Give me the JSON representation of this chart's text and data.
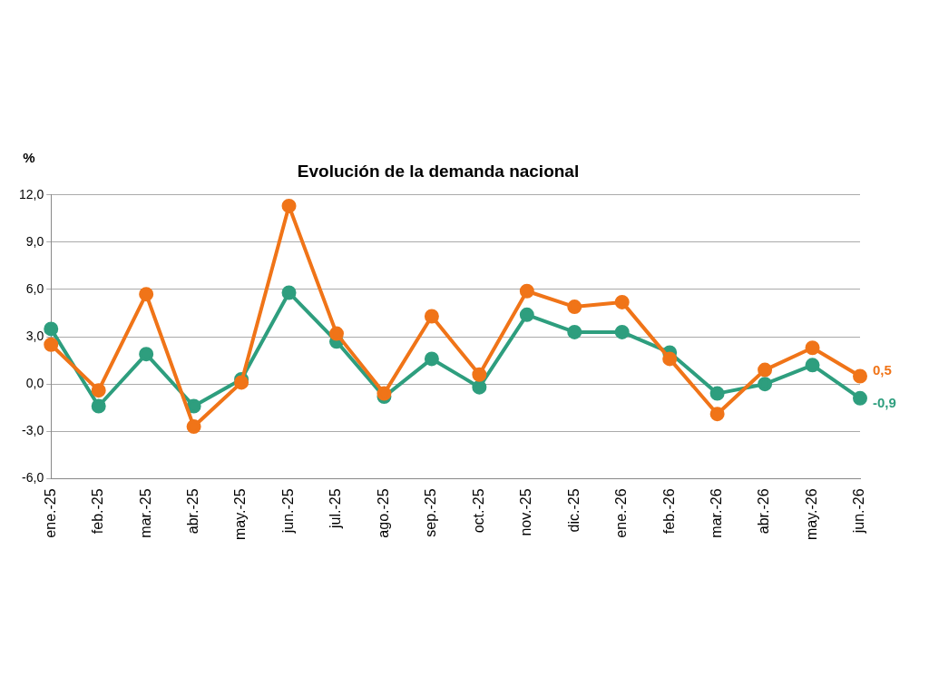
{
  "chart_data": {
    "type": "line",
    "title": "Evolución de la demanda nacional",
    "ylabel": "%",
    "categories": [
      "ene.-25",
      "feb.-25",
      "mar.-25",
      "abr.-25",
      "may.-25",
      "jun.-25",
      "jul.-25",
      "ago.-25",
      "sep.-25",
      "oct.-25",
      "nov.-25",
      "dic.-25",
      "ene.-26",
      "feb.-26",
      "mar.-26",
      "abr.-26",
      "may.-26",
      "jun.-26"
    ],
    "series": [
      {
        "color": "#2e9e7e",
        "values": [
          3.5,
          -1.4,
          1.9,
          -1.4,
          0.3,
          5.8,
          2.7,
          -0.8,
          1.6,
          -0.2,
          4.4,
          3.3,
          3.3,
          2.0,
          -0.6,
          0.0,
          1.2,
          -0.9
        ],
        "value_labels": [
          null,
          null,
          null,
          null,
          null,
          null,
          null,
          null,
          null,
          null,
          null,
          null,
          null,
          null,
          null,
          null,
          null,
          "-0,9"
        ]
      },
      {
        "color": "#f07418",
        "values": [
          2.5,
          -0.4,
          5.7,
          -2.7,
          0.1,
          11.3,
          3.2,
          -0.6,
          4.3,
          0.6,
          5.9,
          4.9,
          5.2,
          1.6,
          -1.9,
          0.9,
          2.3,
          0.5
        ],
        "value_labels": [
          null,
          null,
          null,
          null,
          null,
          null,
          null,
          null,
          null,
          null,
          null,
          null,
          null,
          null,
          null,
          null,
          null,
          "0,5"
        ]
      }
    ],
    "ylim": [
      -6,
      12
    ],
    "yticks": [
      {
        "value": -6,
        "label": "-6,0"
      },
      {
        "value": -3,
        "label": "-3,0"
      },
      {
        "value": 0,
        "label": "0,0"
      },
      {
        "value": 3,
        "label": "3,0"
      },
      {
        "value": 6,
        "label": "6,0"
      },
      {
        "value": 9,
        "label": "9,0"
      },
      {
        "value": 12,
        "label": "12,0"
      }
    ],
    "grid": "y",
    "legend": false,
    "marker": "circle",
    "line_style": "solid"
  }
}
